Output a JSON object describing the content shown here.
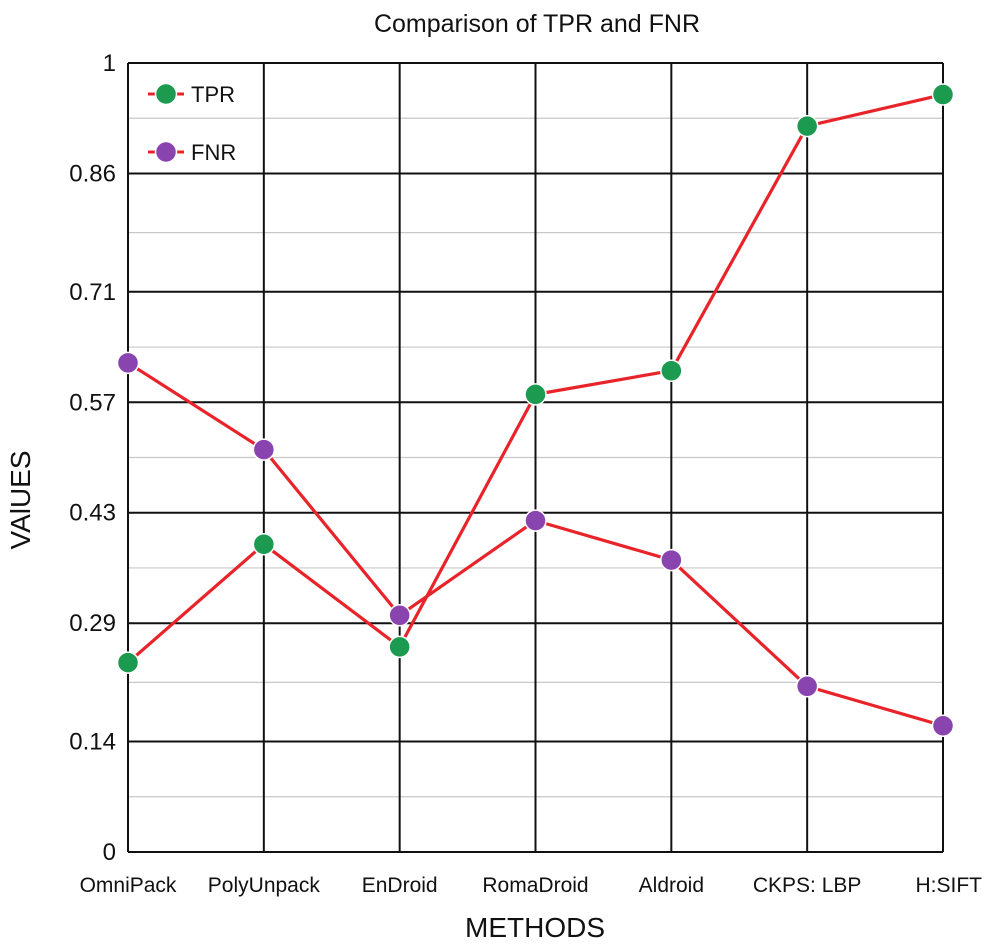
{
  "chart_data": {
    "type": "line",
    "title": "Comparison of TPR and FNR",
    "xlabel": "METHODS",
    "ylabel": "VAlUES",
    "categories": [
      "OmniPack",
      "PolyUnpack",
      "EnDroid",
      "RomaDroid",
      "Aldroid",
      "CKPS: LBP",
      "H:SIFT"
    ],
    "ylim": [
      0,
      1
    ],
    "yticks": [
      0,
      0.14,
      0.29,
      0.43,
      0.57,
      0.71,
      0.86,
      1
    ],
    "ytick_labels": [
      "0",
      "0.14",
      "0.29",
      "0.43",
      "0.57",
      "0.71",
      "0.86",
      "1"
    ],
    "grid": true,
    "legend_position": "top-left",
    "line_color": "#e8242a",
    "series": [
      {
        "name": "TPR",
        "values": [
          0.24,
          0.39,
          0.26,
          0.58,
          0.61,
          0.92,
          0.96
        ],
        "marker_color": "#1b9a50"
      },
      {
        "name": "FNR",
        "values": [
          0.62,
          0.51,
          0.3,
          0.42,
          0.37,
          0.21,
          0.16
        ],
        "marker_color": "#8a44b0"
      }
    ]
  }
}
